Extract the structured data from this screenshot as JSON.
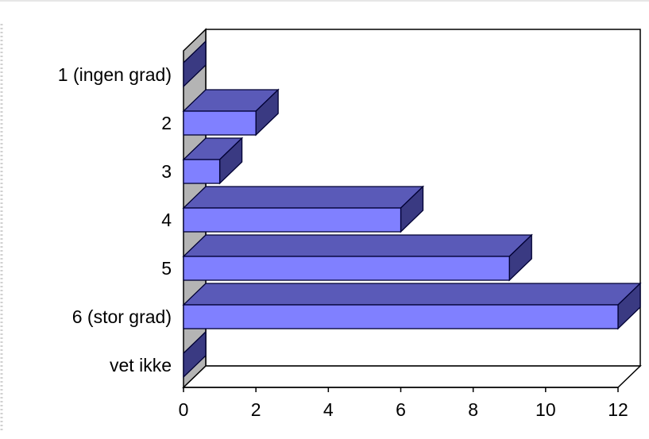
{
  "chart_data": {
    "type": "bar",
    "orientation": "horizontal",
    "style": "3d",
    "categories": [
      "1 (ingen grad)",
      "2",
      "3",
      "4",
      "5",
      "6 (stor grad)",
      "vet ikke"
    ],
    "values": [
      0,
      2,
      1,
      6,
      9,
      12,
      0
    ],
    "xlim": [
      0,
      12
    ],
    "xticks": [
      "0",
      "2",
      "4",
      "6",
      "8",
      "10",
      "12"
    ],
    "title": "",
    "xlabel": "",
    "ylabel": "",
    "grid": false,
    "legend": "none",
    "colors": {
      "bar_front": "#8080ff",
      "bar_top": "#5a5ab8",
      "bar_side": "#3a3a82",
      "bar_edge": "#000033",
      "wall": "#ffffff",
      "floor_shadow": "#b4b4b4",
      "axis": "#000000"
    }
  }
}
